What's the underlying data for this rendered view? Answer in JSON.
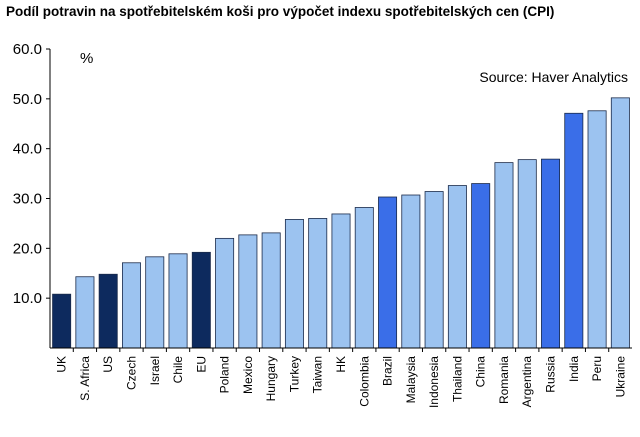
{
  "chart_data": {
    "type": "bar",
    "title": "Podíl potravin na spotřebitelském koši pro výpočet indexu spotřebitelských cen (CPI)",
    "unit_label": "%",
    "source": "Source: Haver Analytics",
    "ylim": [
      0,
      60
    ],
    "yticks": [
      "10.0",
      "20.0",
      "30.0",
      "40.0",
      "50.0",
      "60.0"
    ],
    "ytick_values": [
      10,
      20,
      30,
      40,
      50,
      60
    ],
    "grid": false,
    "categories": [
      "UK",
      "S. Africa",
      "US",
      "Czech",
      "Israel",
      "Chile",
      "EU",
      "Poland",
      "Mexico",
      "Hungary",
      "Turkey",
      "Taiwan",
      "HK",
      "Colombia",
      "Brazil",
      "Malaysia",
      "Indonesia",
      "Thailand",
      "China",
      "Romania",
      "Argentina",
      "Russia",
      "India",
      "Peru",
      "Ukraine"
    ],
    "values": [
      10.8,
      14.3,
      14.8,
      17.1,
      18.3,
      18.9,
      19.2,
      22.0,
      22.7,
      23.1,
      25.8,
      26.0,
      26.9,
      28.2,
      30.3,
      30.7,
      31.4,
      32.6,
      33.0,
      37.2,
      37.8,
      37.9,
      47.1,
      47.6,
      50.2
    ],
    "group": [
      "dark",
      "light",
      "dark",
      "light",
      "light",
      "light",
      "dark",
      "light",
      "light",
      "light",
      "light",
      "light",
      "light",
      "light",
      "blue",
      "light",
      "light",
      "light",
      "blue",
      "light",
      "light",
      "blue",
      "blue",
      "light",
      "light"
    ],
    "colors": {
      "dark": "#0d2a5e",
      "light": "#9cc3f0",
      "blue": "#3a6ee8",
      "edge": "#1a2a4a"
    }
  }
}
